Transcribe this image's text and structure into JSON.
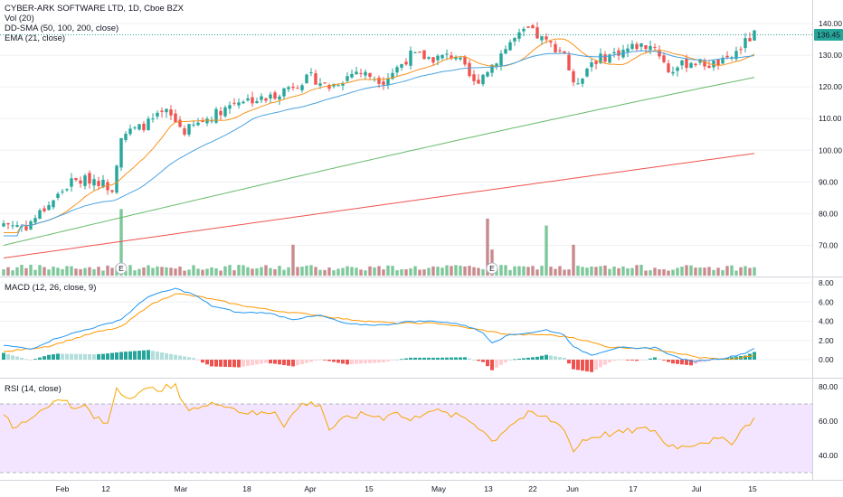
{
  "main_pane": {
    "symbol_title": "CYBER-ARK SOFTWARE LTD, 1D, Cboe BZX",
    "volume_label": "Vol (20)",
    "sma_label": "DD-SMA (50, 100, 200, close)",
    "ema_label": "EMA (21, close)",
    "price_ticks": [
      "140.00",
      "130.00",
      "120.00",
      "110.00",
      "100.00",
      "90.00",
      "80.00",
      "70.00"
    ],
    "last_price": "136.45",
    "earnings_marker": "E"
  },
  "macd_pane": {
    "label": "MACD (12, 26, close, 9)",
    "ticks": [
      "8.00",
      "6.00",
      "4.00",
      "2.00",
      "0.00"
    ]
  },
  "rsi_pane": {
    "label": "RSI (14, close)",
    "ticks": [
      "80.00",
      "60.00",
      "40.00"
    ]
  },
  "time_axis": [
    "Feb",
    "12",
    "Mar",
    "18",
    "Apr",
    "15",
    "May",
    "13",
    "22",
    "Jun",
    "17",
    "Jul",
    "15"
  ],
  "colors": {
    "up": "#26a69a",
    "down": "#ef5350",
    "vol_up": "#7ec79a",
    "vol_down": "#c98a8f",
    "ema": "#f7931e",
    "sma50": "#4aa3df",
    "sma100": "#66bb6a",
    "sma200": "#ef5350",
    "macd": "#2196f3",
    "signal": "#ff9800",
    "rsi": "#f7a600",
    "rsi_band": "#f3e5ff",
    "last_price_bg": "#26a69a"
  },
  "chart_data": {
    "type": "candlestick",
    "title": "CYBER-ARK SOFTWARE LTD, 1D, Cboe BZX",
    "y_range": [
      62,
      145
    ],
    "last_price": 136.45,
    "trend_points": [
      {
        "day": 0,
        "price": 77
      },
      {
        "day": 5,
        "price": 76
      },
      {
        "day": 10,
        "price": 83
      },
      {
        "day": 15,
        "price": 90
      },
      {
        "day": 20,
        "price": 91
      },
      {
        "day": 24,
        "price": 88
      },
      {
        "day": 26,
        "price": 105
      },
      {
        "day": 30,
        "price": 107
      },
      {
        "day": 36,
        "price": 112
      },
      {
        "day": 40,
        "price": 106
      },
      {
        "day": 45,
        "price": 110
      },
      {
        "day": 52,
        "price": 116
      },
      {
        "day": 58,
        "price": 116
      },
      {
        "day": 63,
        "price": 120
      },
      {
        "day": 68,
        "price": 123
      },
      {
        "day": 72,
        "price": 120
      },
      {
        "day": 78,
        "price": 125
      },
      {
        "day": 84,
        "price": 122
      },
      {
        "day": 90,
        "price": 130
      },
      {
        "day": 95,
        "price": 129
      },
      {
        "day": 100,
        "price": 130
      },
      {
        "day": 104,
        "price": 121
      },
      {
        "day": 108,
        "price": 127
      },
      {
        "day": 112,
        "price": 134
      },
      {
        "day": 116,
        "price": 138
      },
      {
        "day": 120,
        "price": 134
      },
      {
        "day": 124,
        "price": 131
      },
      {
        "day": 126,
        "price": 120
      },
      {
        "day": 130,
        "price": 128
      },
      {
        "day": 136,
        "price": 131
      },
      {
        "day": 140,
        "price": 133
      },
      {
        "day": 144,
        "price": 133
      },
      {
        "day": 147,
        "price": 125
      },
      {
        "day": 152,
        "price": 128
      },
      {
        "day": 156,
        "price": 127
      },
      {
        "day": 160,
        "price": 128
      },
      {
        "day": 164,
        "price": 134
      },
      {
        "day": 166,
        "price": 136.45
      }
    ],
    "ema21_endpoints": [
      74,
      129
    ],
    "sma50_endpoints": [
      73,
      130
    ],
    "sma100_endpoints": [
      70,
      123
    ],
    "sma200_endpoints": [
      66,
      99
    ],
    "volume_spikes": [
      {
        "day": 26,
        "rel": 0.97,
        "up": true
      },
      {
        "day": 64,
        "rel": 0.45,
        "up": false
      },
      {
        "day": 107,
        "rel": 0.83,
        "up": false
      },
      {
        "day": 108,
        "rel": 0.38,
        "up": false
      },
      {
        "day": 120,
        "rel": 0.73,
        "up": true
      },
      {
        "day": 126,
        "rel": 0.45,
        "up": false
      }
    ],
    "earnings_days": [
      26,
      108
    ],
    "macd_range": [
      -1.5,
      8.5
    ],
    "rsi_range": [
      30,
      84
    ],
    "rsi_band": [
      30,
      70
    ]
  }
}
